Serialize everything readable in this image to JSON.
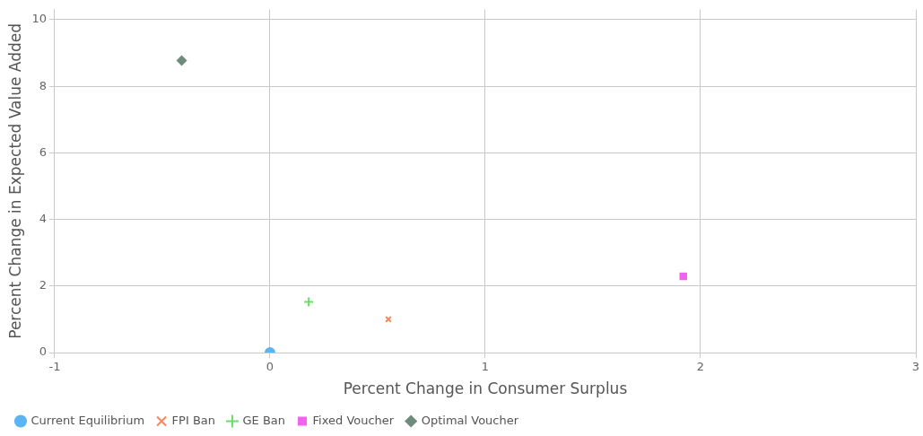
{
  "chart_data": {
    "type": "scatter",
    "xlabel": "Percent Change in Consumer Surplus",
    "ylabel": "Percent Change in Expected Value Added",
    "xlim": [
      -1,
      3
    ],
    "xticks": [
      -1,
      0,
      1,
      2,
      3
    ],
    "ylim": [
      0,
      10.3
    ],
    "yticks": [
      0,
      2,
      4,
      6,
      8,
      10
    ],
    "grid": true,
    "legend": "bottom",
    "series": [
      {
        "name": "Current Equilibrium",
        "color": "#5ab4f5",
        "marker": "circle",
        "x": [
          0
        ],
        "values": [
          0
        ]
      },
      {
        "name": "FPI Ban",
        "color": "#f4895a",
        "marker": "cross",
        "x": [
          0.55
        ],
        "values": [
          1.0
        ]
      },
      {
        "name": "GE Ban",
        "color": "#6ddc6d",
        "marker": "plus",
        "x": [
          0.18
        ],
        "values": [
          1.52
        ]
      },
      {
        "name": "Fixed Voucher",
        "color": "#f062f0",
        "marker": "square",
        "x": [
          1.92
        ],
        "values": [
          2.29
        ]
      },
      {
        "name": "Optimal Voucher",
        "color": "#6e8b7d",
        "marker": "diamond",
        "x": [
          -0.41
        ],
        "values": [
          8.77
        ]
      }
    ]
  }
}
